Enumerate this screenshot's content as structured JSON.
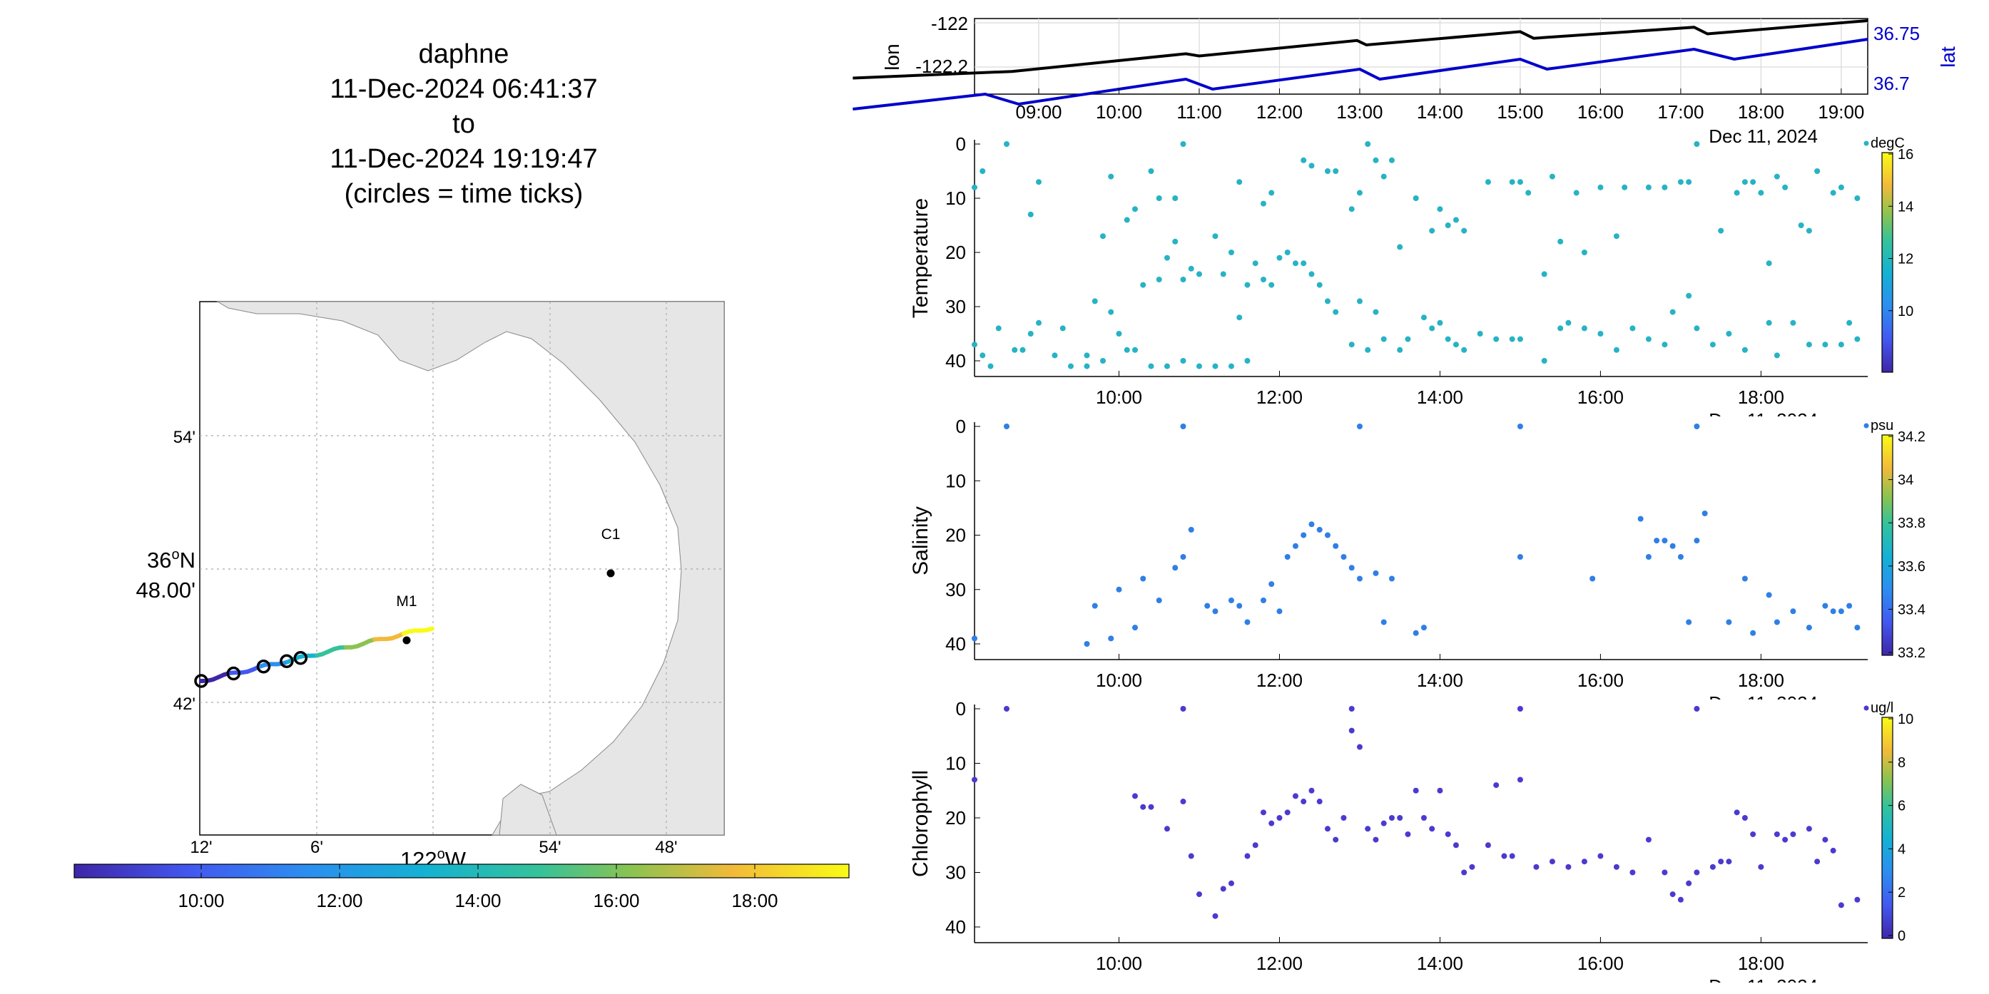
{
  "title": {
    "platform": "daphne",
    "start": "11-Dec-2024 06:41:37",
    "to": "to",
    "end": "11-Dec-2024 19:19:47",
    "note": "(circles = time ticks)"
  },
  "map": {
    "lat_ticks": [
      "54'",
      "36°N 48.00'",
      "42'"
    ],
    "lat_tick_main_top": "36",
    "lat_tick_main_sup": "o",
    "lat_tick_main_n": "N",
    "lat_tick_main_bottom": "48.00'",
    "lon_ticks": [
      "12'",
      "6'",
      "54'",
      "48'"
    ],
    "lon_label": "122",
    "lon_label_sup": "o",
    "lon_label_w": "W",
    "stations": [
      {
        "name": "C1"
      },
      {
        "name": "M1"
      }
    ],
    "colorbar_ticks": [
      "10:00",
      "12:00",
      "14:00",
      "16:00",
      "18:00"
    ]
  },
  "chart_data": [
    {
      "type": "line",
      "title": "",
      "xlabel": "Dec 11, 2024",
      "ylabel": "lon",
      "ylabel_right": "lat",
      "x_ticks": [
        "09:00",
        "10:00",
        "11:00",
        "12:00",
        "13:00",
        "14:00",
        "15:00",
        "16:00",
        "17:00",
        "18:00",
        "19:00"
      ],
      "y_ticks_left": [
        "-122",
        "-122.2"
      ],
      "y_ticks_right": [
        "36.75",
        "36.7"
      ],
      "series": [
        {
          "name": "lon",
          "color": "#000000",
          "x": [
            "06:41",
            "08:40",
            "10:50",
            "11:00",
            "12:58",
            "13:05",
            "15:00",
            "15:10",
            "17:10",
            "17:20",
            "19:20"
          ],
          "values": [
            -122.25,
            -122.22,
            -122.14,
            -122.15,
            -122.08,
            -122.1,
            -122.04,
            -122.07,
            -122.02,
            -122.05,
            -121.99
          ]
        },
        {
          "name": "lat",
          "color": "#0000cc",
          "x": [
            "06:41",
            "08:20",
            "08:45",
            "10:50",
            "11:10",
            "13:00",
            "13:15",
            "15:00",
            "15:20",
            "17:10",
            "17:40",
            "19:20"
          ],
          "values": [
            36.675,
            36.69,
            36.68,
            36.705,
            36.695,
            36.715,
            36.705,
            36.725,
            36.715,
            36.735,
            36.725,
            36.745
          ]
        }
      ]
    },
    {
      "type": "scatter",
      "ylabel": "Temperature",
      "xlabel": "Dec 11, 2024",
      "x_ticks": [
        "10:00",
        "12:00",
        "14:00",
        "16:00",
        "18:00"
      ],
      "y_ticks": [
        "0",
        "10",
        "20",
        "30",
        "40"
      ],
      "ylim": [
        0,
        42
      ],
      "colorbar_unit": "degC",
      "colorbar_ticks": [
        "16",
        "14",
        "12",
        "10"
      ],
      "point_color": "#26b3c4",
      "points": [
        [
          8.2,
          8
        ],
        [
          8.3,
          5
        ],
        [
          8.6,
          0
        ],
        [
          8.9,
          13
        ],
        [
          9.0,
          7
        ],
        [
          9.8,
          17
        ],
        [
          9.9,
          6
        ],
        [
          10.1,
          14
        ],
        [
          10.2,
          12
        ],
        [
          10.4,
          5
        ],
        [
          10.5,
          10
        ],
        [
          10.7,
          10
        ],
        [
          10.8,
          0
        ],
        [
          11.5,
          7
        ],
        [
          11.8,
          11
        ],
        [
          11.9,
          9
        ],
        [
          12.3,
          3
        ],
        [
          12.4,
          4
        ],
        [
          12.6,
          5
        ],
        [
          12.7,
          5
        ],
        [
          12.9,
          12
        ],
        [
          13.0,
          9
        ],
        [
          13.1,
          0
        ],
        [
          13.2,
          3
        ],
        [
          13.3,
          6
        ],
        [
          13.4,
          3
        ],
        [
          13.5,
          19
        ],
        [
          13.7,
          10
        ],
        [
          13.9,
          16
        ],
        [
          14.0,
          12
        ],
        [
          14.1,
          15
        ],
        [
          14.2,
          14
        ],
        [
          14.3,
          16
        ],
        [
          14.6,
          7
        ],
        [
          14.9,
          7
        ],
        [
          15.0,
          7
        ],
        [
          15.1,
          9
        ],
        [
          15.3,
          24
        ],
        [
          15.4,
          6
        ],
        [
          15.5,
          18
        ],
        [
          15.7,
          9
        ],
        [
          15.8,
          20
        ],
        [
          16.0,
          8
        ],
        [
          16.2,
          17
        ],
        [
          16.3,
          8
        ],
        [
          16.6,
          8
        ],
        [
          16.8,
          8
        ],
        [
          17.0,
          7
        ],
        [
          17.1,
          7
        ],
        [
          17.2,
          0
        ],
        [
          17.5,
          16
        ],
        [
          17.7,
          9
        ],
        [
          17.8,
          7
        ],
        [
          17.9,
          7
        ],
        [
          18.0,
          9
        ],
        [
          18.1,
          22
        ],
        [
          18.2,
          6
        ],
        [
          18.3,
          8
        ],
        [
          18.5,
          15
        ],
        [
          18.6,
          16
        ],
        [
          18.7,
          5
        ],
        [
          18.9,
          9
        ],
        [
          19.0,
          8
        ],
        [
          19.2,
          10
        ],
        [
          8.2,
          37
        ],
        [
          8.3,
          39
        ],
        [
          8.5,
          34
        ],
        [
          8.7,
          38
        ],
        [
          8.8,
          38
        ],
        [
          8.9,
          35
        ],
        [
          9.0,
          33
        ],
        [
          9.2,
          39
        ],
        [
          9.3,
          34
        ],
        [
          9.4,
          41
        ],
        [
          9.6,
          39
        ],
        [
          9.7,
          29
        ],
        [
          9.8,
          40
        ],
        [
          9.9,
          31
        ],
        [
          10.0,
          35
        ],
        [
          10.1,
          38
        ],
        [
          10.2,
          38
        ],
        [
          10.3,
          26
        ],
        [
          10.5,
          25
        ],
        [
          10.6,
          21
        ],
        [
          10.7,
          18
        ],
        [
          10.8,
          25
        ],
        [
          10.9,
          23
        ],
        [
          11.0,
          24
        ],
        [
          11.2,
          17
        ],
        [
          11.3,
          24
        ],
        [
          11.4,
          20
        ],
        [
          11.5,
          32
        ],
        [
          11.6,
          26
        ],
        [
          11.7,
          22
        ],
        [
          11.8,
          25
        ],
        [
          11.9,
          26
        ],
        [
          12.0,
          21
        ],
        [
          12.1,
          20
        ],
        [
          12.2,
          22
        ],
        [
          12.3,
          22
        ],
        [
          12.4,
          24
        ],
        [
          12.5,
          26
        ],
        [
          12.6,
          29
        ],
        [
          12.7,
          31
        ],
        [
          12.9,
          37
        ],
        [
          13.0,
          29
        ],
        [
          13.1,
          38
        ],
        [
          13.2,
          31
        ],
        [
          13.3,
          36
        ],
        [
          13.5,
          38
        ],
        [
          13.6,
          36
        ],
        [
          13.8,
          32
        ],
        [
          13.9,
          34
        ],
        [
          14.0,
          33
        ],
        [
          14.1,
          36
        ],
        [
          14.2,
          37
        ],
        [
          14.3,
          38
        ],
        [
          14.5,
          35
        ],
        [
          14.7,
          36
        ],
        [
          14.9,
          36
        ],
        [
          15.0,
          36
        ],
        [
          15.3,
          40
        ],
        [
          15.5,
          34
        ],
        [
          15.6,
          33
        ],
        [
          15.8,
          34
        ],
        [
          16.0,
          35
        ],
        [
          16.2,
          38
        ],
        [
          16.4,
          34
        ],
        [
          16.6,
          36
        ],
        [
          16.8,
          37
        ],
        [
          16.9,
          31
        ],
        [
          17.1,
          28
        ],
        [
          17.2,
          34
        ],
        [
          17.4,
          37
        ],
        [
          17.6,
          35
        ],
        [
          17.8,
          38
        ],
        [
          18.1,
          33
        ],
        [
          18.2,
          39
        ],
        [
          18.4,
          33
        ],
        [
          18.6,
          37
        ],
        [
          18.8,
          37
        ],
        [
          19.0,
          37
        ],
        [
          19.1,
          33
        ],
        [
          19.2,
          36
        ],
        [
          10.4,
          41
        ],
        [
          10.6,
          41
        ],
        [
          10.8,
          40
        ],
        [
          11.0,
          41
        ],
        [
          11.2,
          41
        ],
        [
          11.4,
          41
        ],
        [
          11.6,
          40
        ],
        [
          8.4,
          41
        ],
        [
          9.6,
          41
        ]
      ]
    },
    {
      "type": "scatter",
      "ylabel": "Salinity",
      "xlabel": "Dec 11, 2024",
      "x_ticks": [
        "10:00",
        "12:00",
        "14:00",
        "16:00",
        "18:00"
      ],
      "y_ticks": [
        "0",
        "10",
        "20",
        "30",
        "40"
      ],
      "ylim": [
        0,
        42
      ],
      "colorbar_unit": "psu",
      "colorbar_ticks": [
        "34.2",
        "34",
        "33.8",
        "33.6",
        "33.4",
        "33.2"
      ],
      "point_color": "#2f7fe6",
      "points": [
        [
          8.2,
          39
        ],
        [
          8.6,
          0
        ],
        [
          9.6,
          40
        ],
        [
          9.7,
          33
        ],
        [
          9.9,
          39
        ],
        [
          10.0,
          30
        ],
        [
          10.2,
          37
        ],
        [
          10.3,
          28
        ],
        [
          10.5,
          32
        ],
        [
          10.7,
          26
        ],
        [
          10.8,
          24
        ],
        [
          10.9,
          19
        ],
        [
          10.8,
          0
        ],
        [
          11.1,
          33
        ],
        [
          11.2,
          34
        ],
        [
          11.4,
          32
        ],
        [
          11.5,
          33
        ],
        [
          11.6,
          36
        ],
        [
          11.8,
          32
        ],
        [
          11.9,
          29
        ],
        [
          12.0,
          34
        ],
        [
          12.1,
          24
        ],
        [
          12.2,
          22
        ],
        [
          12.3,
          20
        ],
        [
          12.4,
          18
        ],
        [
          12.5,
          19
        ],
        [
          12.6,
          20
        ],
        [
          12.7,
          22
        ],
        [
          12.8,
          24
        ],
        [
          12.9,
          26
        ],
        [
          13.0,
          28
        ],
        [
          13.0,
          0
        ],
        [
          13.2,
          27
        ],
        [
          13.3,
          36
        ],
        [
          13.4,
          28
        ],
        [
          13.7,
          38
        ],
        [
          13.8,
          37
        ],
        [
          15.0,
          24
        ],
        [
          15.0,
          0
        ],
        [
          15.9,
          28
        ],
        [
          16.5,
          17
        ],
        [
          16.6,
          24
        ],
        [
          16.7,
          21
        ],
        [
          16.8,
          21
        ],
        [
          16.9,
          22
        ],
        [
          17.0,
          24
        ],
        [
          17.1,
          36
        ],
        [
          17.2,
          21
        ],
        [
          17.2,
          0
        ],
        [
          17.3,
          16
        ],
        [
          17.6,
          36
        ],
        [
          17.8,
          28
        ],
        [
          17.9,
          38
        ],
        [
          18.1,
          31
        ],
        [
          18.2,
          36
        ],
        [
          18.4,
          34
        ],
        [
          18.6,
          37
        ],
        [
          18.8,
          33
        ],
        [
          18.9,
          34
        ],
        [
          19.0,
          34
        ],
        [
          19.1,
          33
        ],
        [
          19.2,
          37
        ]
      ]
    },
    {
      "type": "scatter",
      "ylabel": "Chlorophyll",
      "xlabel": "Dec 11, 2024",
      "x_ticks": [
        "10:00",
        "12:00",
        "14:00",
        "16:00",
        "18:00"
      ],
      "y_ticks": [
        "0",
        "10",
        "20",
        "30",
        "40"
      ],
      "ylim": [
        0,
        42
      ],
      "colorbar_unit": "ug/l",
      "colorbar_ticks": [
        "10",
        "8",
        "6",
        "4",
        "2",
        "0"
      ],
      "point_color": "#4b3ad0",
      "points": [
        [
          8.2,
          13
        ],
        [
          8.6,
          0
        ],
        [
          10.2,
          16
        ],
        [
          10.3,
          18
        ],
        [
          10.4,
          18
        ],
        [
          10.6,
          22
        ],
        [
          10.8,
          17
        ],
        [
          10.8,
          0
        ],
        [
          10.9,
          27
        ],
        [
          11.0,
          34
        ],
        [
          11.2,
          38
        ],
        [
          11.3,
          33
        ],
        [
          11.4,
          32
        ],
        [
          11.6,
          27
        ],
        [
          11.7,
          25
        ],
        [
          11.8,
          19
        ],
        [
          11.9,
          21
        ],
        [
          12.0,
          20
        ],
        [
          12.1,
          19
        ],
        [
          12.2,
          16
        ],
        [
          12.3,
          17
        ],
        [
          12.4,
          15
        ],
        [
          12.5,
          17
        ],
        [
          12.6,
          22
        ],
        [
          12.7,
          24
        ],
        [
          12.8,
          20
        ],
        [
          12.9,
          4
        ],
        [
          12.9,
          0
        ],
        [
          13.0,
          7
        ],
        [
          13.1,
          22
        ],
        [
          13.2,
          24
        ],
        [
          13.3,
          21
        ],
        [
          13.4,
          20
        ],
        [
          13.5,
          20
        ],
        [
          13.6,
          23
        ],
        [
          13.7,
          15
        ],
        [
          13.8,
          20
        ],
        [
          13.9,
          22
        ],
        [
          14.0,
          15
        ],
        [
          14.1,
          23
        ],
        [
          14.2,
          25
        ],
        [
          14.3,
          30
        ],
        [
          14.4,
          29
        ],
        [
          14.6,
          25
        ],
        [
          14.7,
          14
        ],
        [
          14.8,
          27
        ],
        [
          14.9,
          27
        ],
        [
          15.0,
          13
        ],
        [
          15.0,
          0
        ],
        [
          15.2,
          29
        ],
        [
          15.4,
          28
        ],
        [
          15.6,
          29
        ],
        [
          15.8,
          28
        ],
        [
          16.0,
          27
        ],
        [
          16.2,
          29
        ],
        [
          16.4,
          30
        ],
        [
          16.6,
          24
        ],
        [
          16.8,
          30
        ],
        [
          16.9,
          34
        ],
        [
          17.0,
          35
        ],
        [
          17.1,
          32
        ],
        [
          17.2,
          30
        ],
        [
          17.2,
          0
        ],
        [
          17.4,
          29
        ],
        [
          17.5,
          28
        ],
        [
          17.6,
          28
        ],
        [
          17.7,
          19
        ],
        [
          17.8,
          20
        ],
        [
          17.9,
          23
        ],
        [
          18.0,
          29
        ],
        [
          18.2,
          23
        ],
        [
          18.3,
          24
        ],
        [
          18.4,
          23
        ],
        [
          18.6,
          22
        ],
        [
          18.7,
          28
        ],
        [
          18.8,
          24
        ],
        [
          18.9,
          26
        ],
        [
          19.0,
          36
        ],
        [
          19.2,
          35
        ]
      ]
    }
  ]
}
